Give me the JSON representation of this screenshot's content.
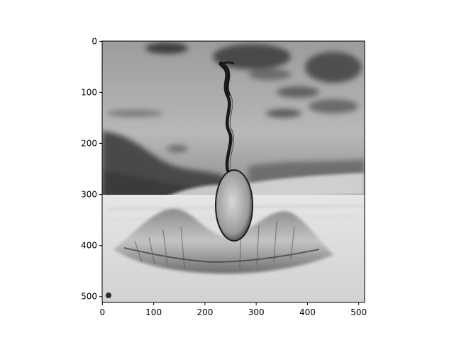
{
  "figure": {
    "image_description_icon": "grayscale-image-icon"
  },
  "chart_data": {
    "type": "image",
    "image": {
      "width_units": 512,
      "height_units": 512,
      "colormap": "gray",
      "content": "grayscale abstract landscape: cloudy sky, twisting stem rising from a pale bulbous form inside a crater-like mound on a sandy plain"
    },
    "xlim": [
      -0.5,
      511.5
    ],
    "ylim": [
      511.5,
      -0.5
    ],
    "x_ticks": [
      0,
      100,
      200,
      300,
      400,
      500
    ],
    "y_ticks": [
      0,
      100,
      200,
      300,
      400,
      500
    ],
    "x_tick_labels": [
      "0",
      "100",
      "200",
      "300",
      "400",
      "500"
    ],
    "y_tick_labels": [
      "0",
      "100",
      "200",
      "300",
      "400",
      "500"
    ],
    "title": "",
    "xlabel": "",
    "ylabel": "",
    "grid": false
  }
}
